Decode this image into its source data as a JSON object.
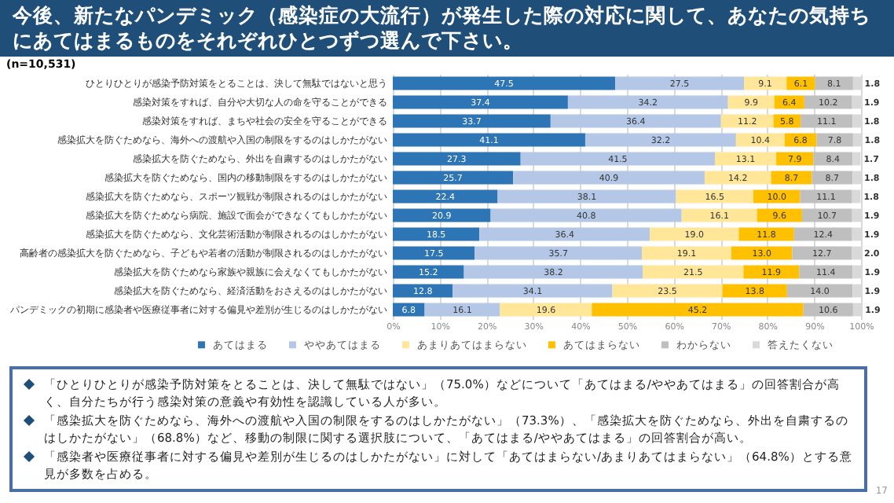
{
  "chart_data": {
    "type": "bar",
    "orientation": "horizontal",
    "stacked": true,
    "title": "今後、新たなパンデミック（感染症の大流行）が発生した際の対応に関して、あなたの気持ちにあてはまるものをそれぞれひとつずつ選んで下さい。",
    "subtitle": "(n=10,531)",
    "categories": [
      "ひとりひとりが感染予防対策をとることは、決して無駄ではないと思う",
      "感染対策をすれば、自分や大切な人の命を守ることができる",
      "感染対策をすれば、まちや社会の安全を守ることができる",
      "感染拡大を防ぐためなら、海外への渡航や入国の制限をするのはしかたがない",
      "感染拡大を防ぐためなら、外出を自粛するのはしかたがない",
      "感染拡大を防ぐためなら、国内の移動制限をするのはしかたがない",
      "感染拡大を防ぐためなら、スポーツ観戦が制限されるのはしかたがない",
      "感染拡大を防ぐためなら病院、施設で面会ができなくてもしかたがない",
      "感染拡大を防ぐためなら、文化芸術活動が制限されるのはしかたがない",
      "高齢者の感染拡大を防ぐためなら、子どもや若者の活動が制限されるのはしかたがない",
      "感染拡大を防ぐためなら家族や親族に会えなくてもしかたがない",
      "感染拡大を防ぐためなら、経済活動をおさえるのはしかたがない",
      "パンデミックの初期に感染者や医療従事者に対する偏見や差別が生じるのはしかたがない"
    ],
    "series": [
      {
        "name": "あてはまる",
        "color": "#2e75b6",
        "values": [
          47.5,
          37.4,
          33.7,
          41.1,
          27.3,
          25.7,
          22.4,
          20.9,
          18.5,
          17.5,
          15.2,
          12.8,
          6.8
        ],
        "value_labels": [
          "47.5",
          "37.4",
          "33.7",
          "41.1",
          "27.3",
          "25.7",
          "22.4",
          "20.9",
          "18.5",
          "17.5",
          "15.2",
          "12.8",
          "6.8"
        ]
      },
      {
        "name": "ややあてはまる",
        "color": "#b4c7e7",
        "values": [
          27.5,
          34.2,
          36.4,
          32.2,
          41.5,
          40.9,
          38.1,
          40.8,
          36.4,
          35.7,
          38.2,
          34.1,
          16.1
        ],
        "value_labels": [
          "27.5",
          "34.2",
          "36.4",
          "32.2",
          "41.5",
          "40.9",
          "38.1",
          "40.8",
          "36.4",
          "35.7",
          "38.2",
          "34.1",
          "16.1"
        ]
      },
      {
        "name": "あまりあてはまらない",
        "color": "#ffe699",
        "values": [
          9.1,
          9.9,
          11.2,
          10.4,
          13.1,
          14.2,
          16.5,
          16.1,
          19.0,
          19.1,
          21.5,
          23.5,
          19.6
        ],
        "value_labels": [
          "9.1",
          "9.9",
          "11.2",
          "10.4",
          "13.1",
          "14.2",
          "16.5",
          "16.1",
          "19.0",
          "19.1",
          "21.5",
          "23.5",
          "19.6"
        ]
      },
      {
        "name": "あてはまらない",
        "color": "#ffc000",
        "values": [
          6.1,
          6.4,
          5.8,
          6.8,
          7.9,
          8.7,
          10.0,
          9.6,
          11.8,
          13.0,
          11.9,
          13.8,
          45.2
        ],
        "value_labels": [
          "6.1",
          "6.4",
          "5.8",
          "6.8",
          "7.9",
          "8.7",
          "10.0",
          "9.6",
          "11.8",
          "13.0",
          "11.9",
          "13.8",
          "45.2"
        ]
      },
      {
        "name": "わからない",
        "color": "#bfbfbf",
        "values": [
          8.1,
          10.2,
          11.1,
          7.8,
          8.4,
          8.7,
          11.1,
          10.7,
          12.4,
          12.7,
          11.4,
          14.0,
          10.6
        ],
        "value_labels": [
          "8.1",
          "10.2",
          "11.1",
          "7.8",
          "8.4",
          "8.7",
          "11.1",
          "10.7",
          "12.4",
          "12.7",
          "11.4",
          "14.0",
          "10.6"
        ]
      },
      {
        "name": "答えたくない",
        "color": "#d9d9d9",
        "values": [
          1.8,
          1.9,
          1.8,
          1.8,
          1.7,
          1.8,
          1.8,
          1.9,
          1.9,
          2.0,
          1.9,
          1.9,
          1.9
        ],
        "value_labels": [
          "1.8",
          "1.9",
          "1.8",
          "1.8",
          "1.7",
          "1.8",
          "1.8",
          "1.9",
          "1.9",
          "2.0",
          "1.9",
          "1.9",
          "1.9"
        ]
      }
    ],
    "xlim": [
      0,
      100
    ],
    "xticks": [
      {
        "value": 0,
        "label": "0%"
      },
      {
        "value": 10,
        "label": "10%"
      },
      {
        "value": 20,
        "label": "20%"
      },
      {
        "value": 30,
        "label": "30%"
      },
      {
        "value": 40,
        "label": "40%"
      },
      {
        "value": 50,
        "label": "50%"
      },
      {
        "value": 60,
        "label": "60%"
      },
      {
        "value": 70,
        "label": "70%"
      },
      {
        "value": 80,
        "label": "80%"
      },
      {
        "value": 90,
        "label": "90%"
      },
      {
        "value": 100,
        "label": "100%"
      }
    ],
    "grid": "x",
    "legend": "bottom",
    "annotations": [
      "「ひとりひとりが感染予防対策をとることは、決して無駄ではない」（75.0%）などについて「あてはまる/ややあてはまる」の回答割合が高く、自分たちが行う感染対策の意義や有効性を認識している人が多い。",
      "「感染拡大を防ぐためなら、海外への渡航や入国の制限をするのはしかたがない」（73.3%）、「感染拡大を防ぐためなら、外出を自粛するのはしかたがない」（68.8%）など、移動の制限に関する選択肢について、「あてはまる/ややあてはまる」の回答割合が高い。",
      "「感染者や医療従事者に対する偏見や差別が生じるのはしかたがない」に対して「あてはまらない/あまりあてはまらない」（64.8%）とする意見が多数を占める。",
      "17"
    ]
  }
}
